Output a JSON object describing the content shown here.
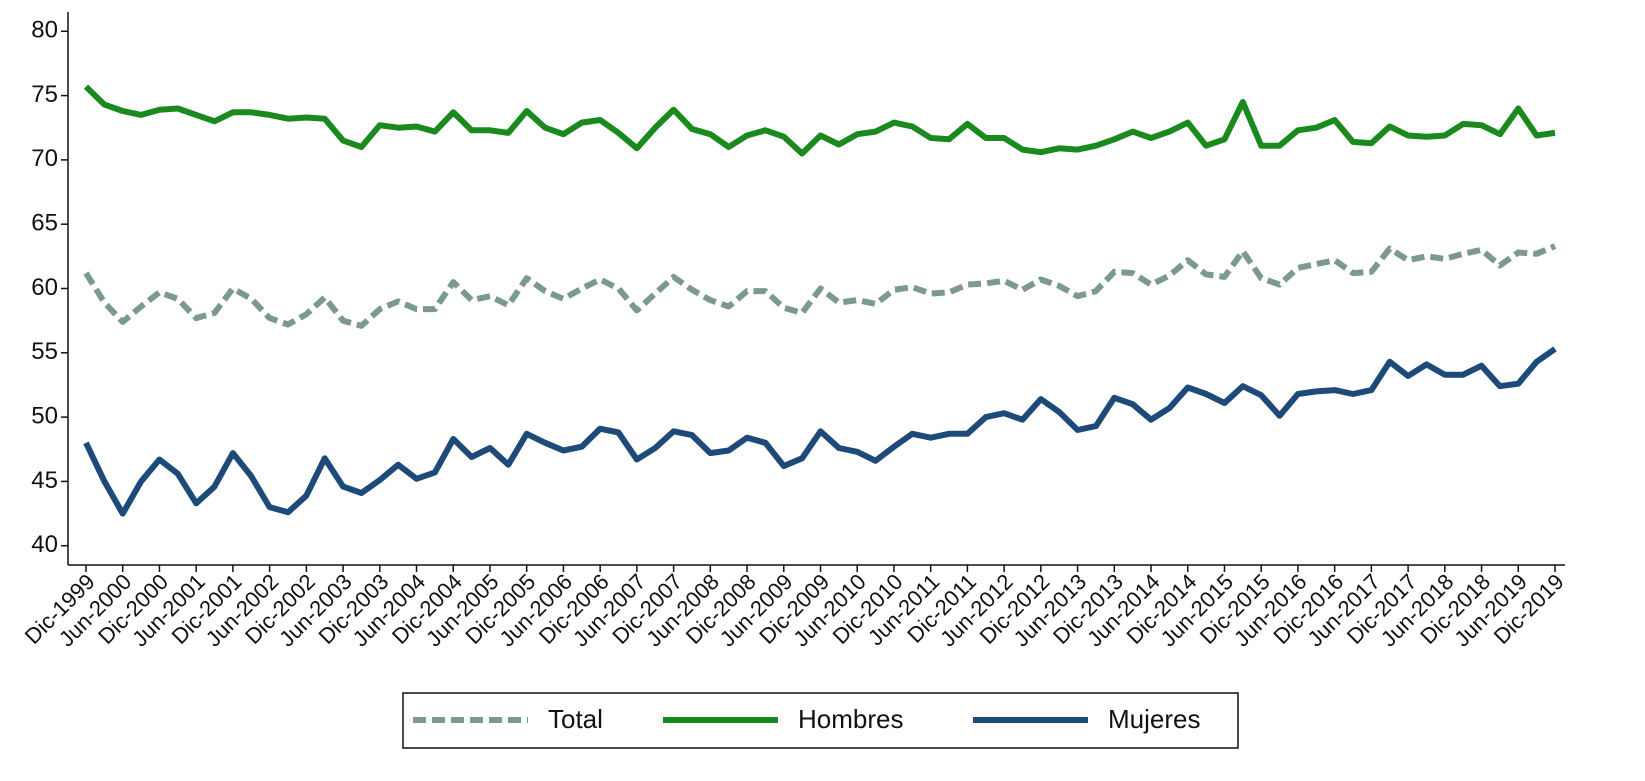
{
  "chart_data": {
    "type": "line",
    "categories": [
      "Dic-1999",
      null,
      "Jun-2000",
      null,
      "Dic-2000",
      null,
      "Jun-2001",
      null,
      "Dic-2001",
      null,
      "Jun-2002",
      null,
      "Dic-2002",
      null,
      "Jun-2003",
      null,
      "Dic-2003",
      null,
      "Jun-2004",
      null,
      "Dic-2004",
      null,
      "Jun-2005",
      null,
      "Dic-2005",
      null,
      "Jun-2006",
      null,
      "Dic-2006",
      null,
      "Jun-2007",
      null,
      "Dic-2007",
      null,
      "Jun-2008",
      null,
      "Dic-2008",
      null,
      "Jun-2009",
      null,
      "Dic-2009",
      null,
      "Jun-2010",
      null,
      "Dic-2010",
      null,
      "Jun-2011",
      null,
      "Dic-2011",
      null,
      "Jun-2012",
      null,
      "Dic-2012",
      null,
      "Jun-2013",
      null,
      "Dic-2013",
      null,
      "Jun-2014",
      null,
      "Dic-2014",
      null,
      "Jun-2015",
      null,
      "Dic-2015",
      null,
      "Jun-2016",
      null,
      "Dic-2016",
      null,
      "Jun-2017",
      null,
      "Dic-2017",
      null,
      "Jun-2018",
      null,
      "Dic-2018",
      null,
      "Jun-2019",
      null,
      "Dic-2019"
    ],
    "series": [
      {
        "name": "Total",
        "color": "#7c9a8c",
        "line_style": "dash",
        "values": [
          61.2,
          58.9,
          57.4,
          58.6,
          59.7,
          59.2,
          57.7,
          58.1,
          60.0,
          59.2,
          57.7,
          57.2,
          58.0,
          59.3,
          57.5,
          57.1,
          58.4,
          59.0,
          58.4,
          58.4,
          60.5,
          59.1,
          59.4,
          58.7,
          60.8,
          59.8,
          59.2,
          60.0,
          60.7,
          60.0,
          58.3,
          59.6,
          60.9,
          59.9,
          59.1,
          58.6,
          59.8,
          59.8,
          58.5,
          58.1,
          60.0,
          58.9,
          59.1,
          58.8,
          59.9,
          60.1,
          59.6,
          59.7,
          60.3,
          60.4,
          60.6,
          59.9,
          60.7,
          60.2,
          59.4,
          59.8,
          61.3,
          61.2,
          60.3,
          61.0,
          62.2,
          61.1,
          60.9,
          62.9,
          60.8,
          60.3,
          61.6,
          61.9,
          62.2,
          61.2,
          61.3,
          63.1,
          62.2,
          62.5,
          62.3,
          62.7,
          63.0,
          61.8,
          62.8,
          62.7,
          63.3
        ]
      },
      {
        "name": "Hombres",
        "color": "#1a8a1f",
        "line_style": "solid",
        "values": [
          75.7,
          74.3,
          73.8,
          73.5,
          73.9,
          74.0,
          73.5,
          73.0,
          73.7,
          73.7,
          73.5,
          73.2,
          73.3,
          73.2,
          71.5,
          71.0,
          72.7,
          72.5,
          72.6,
          72.2,
          73.7,
          72.3,
          72.3,
          72.1,
          73.8,
          72.5,
          72.0,
          72.9,
          73.1,
          72.1,
          70.9,
          72.5,
          73.9,
          72.4,
          72.0,
          71.0,
          71.9,
          72.3,
          71.8,
          70.5,
          71.9,
          71.2,
          72.0,
          72.2,
          72.9,
          72.6,
          71.7,
          71.6,
          72.8,
          71.7,
          71.7,
          70.8,
          70.6,
          70.9,
          70.8,
          71.1,
          71.6,
          72.2,
          71.7,
          72.2,
          72.9,
          71.1,
          71.6,
          74.5,
          71.1,
          71.1,
          72.3,
          72.5,
          73.1,
          71.4,
          71.3,
          72.6,
          71.9,
          71.8,
          71.9,
          72.8,
          72.7,
          72.0,
          74.0,
          71.9,
          72.1
        ]
      },
      {
        "name": "Mujeres",
        "color": "#1d4a78",
        "line_style": "solid",
        "values": [
          48.0,
          45.0,
          42.5,
          45.0,
          46.7,
          45.6,
          43.3,
          44.6,
          47.2,
          45.4,
          43.0,
          42.6,
          43.9,
          46.8,
          44.6,
          44.1,
          45.1,
          46.3,
          45.2,
          45.7,
          48.3,
          46.9,
          47.6,
          46.3,
          48.7,
          48.0,
          47.4,
          47.7,
          49.1,
          48.8,
          46.7,
          47.6,
          48.9,
          48.6,
          47.2,
          47.4,
          48.4,
          48.0,
          46.2,
          46.8,
          48.9,
          47.6,
          47.3,
          46.6,
          47.7,
          48.7,
          48.4,
          48.7,
          48.7,
          50.0,
          50.3,
          49.8,
          51.4,
          50.4,
          49.0,
          49.3,
          51.5,
          51.0,
          49.8,
          50.7,
          52.3,
          51.8,
          51.1,
          52.4,
          51.7,
          50.1,
          51.8,
          52.0,
          52.1,
          51.8,
          52.1,
          54.3,
          53.2,
          54.1,
          53.3,
          53.3,
          54.0,
          52.4,
          52.6,
          54.3,
          55.3
        ]
      }
    ],
    "ylim": [
      38.5,
      81.5
    ],
    "yticks": [
      40,
      45,
      50,
      55,
      60,
      65,
      70,
      75,
      80
    ],
    "grid": false,
    "legend": "bottom"
  }
}
